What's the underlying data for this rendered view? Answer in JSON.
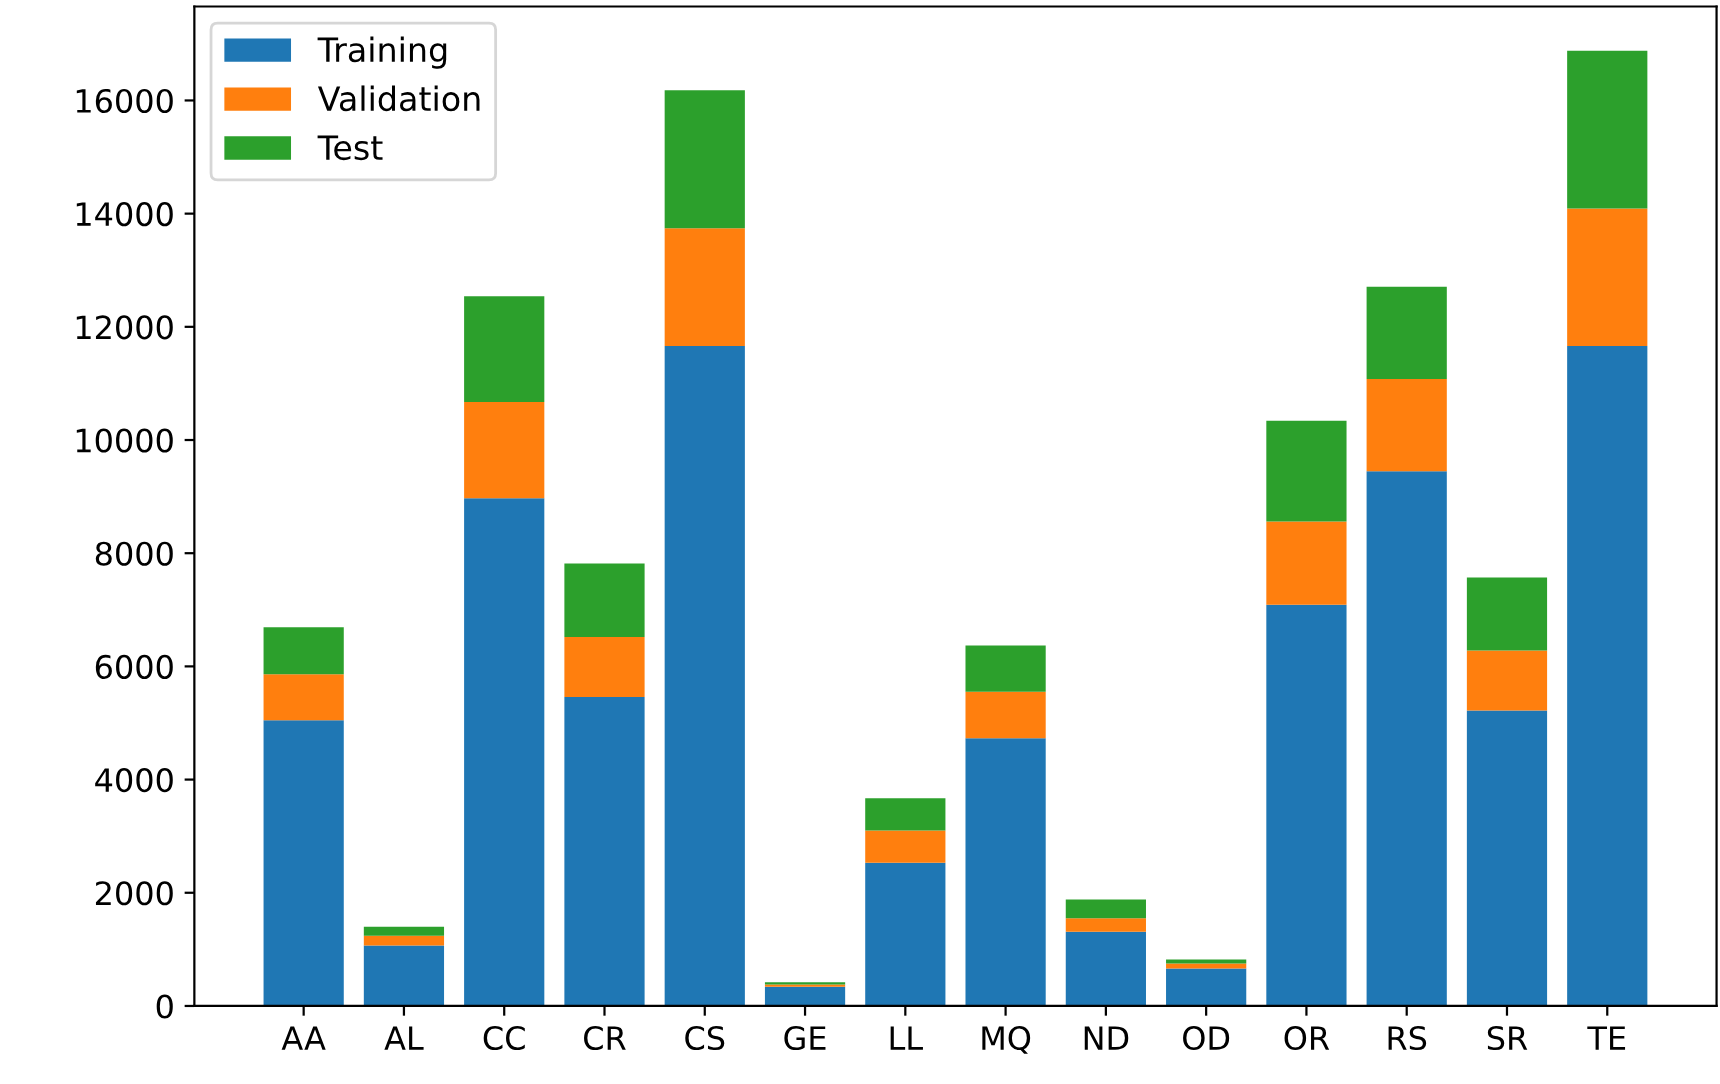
{
  "chart_data": {
    "type": "bar",
    "stacked": true,
    "categories": [
      "AA",
      "AL",
      "CC",
      "CR",
      "CS",
      "GE",
      "LL",
      "MQ",
      "ND",
      "OD",
      "OR",
      "RS",
      "SR",
      "TE"
    ],
    "series": [
      {
        "name": "Training",
        "color": "#1f77b4",
        "values": [
          5050,
          1070,
          8970,
          5460,
          11660,
          340,
          2530,
          4730,
          1310,
          660,
          7090,
          9450,
          5220,
          11660
        ]
      },
      {
        "name": "Validation",
        "color": "#ff7f0e",
        "values": [
          810,
          170,
          1700,
          1060,
          2080,
          40,
          570,
          820,
          240,
          90,
          1470,
          1630,
          1060,
          2430
        ]
      },
      {
        "name": "Test",
        "color": "#2ca02c",
        "values": [
          830,
          160,
          1870,
          1300,
          2440,
          40,
          570,
          820,
          330,
          70,
          1780,
          1630,
          1290,
          2790
        ]
      }
    ],
    "ylim": [
      0,
      17660
    ],
    "yticks": [
      0,
      2000,
      4000,
      6000,
      8000,
      10000,
      12000,
      14000,
      16000
    ],
    "grid": false,
    "legend": "top left"
  }
}
